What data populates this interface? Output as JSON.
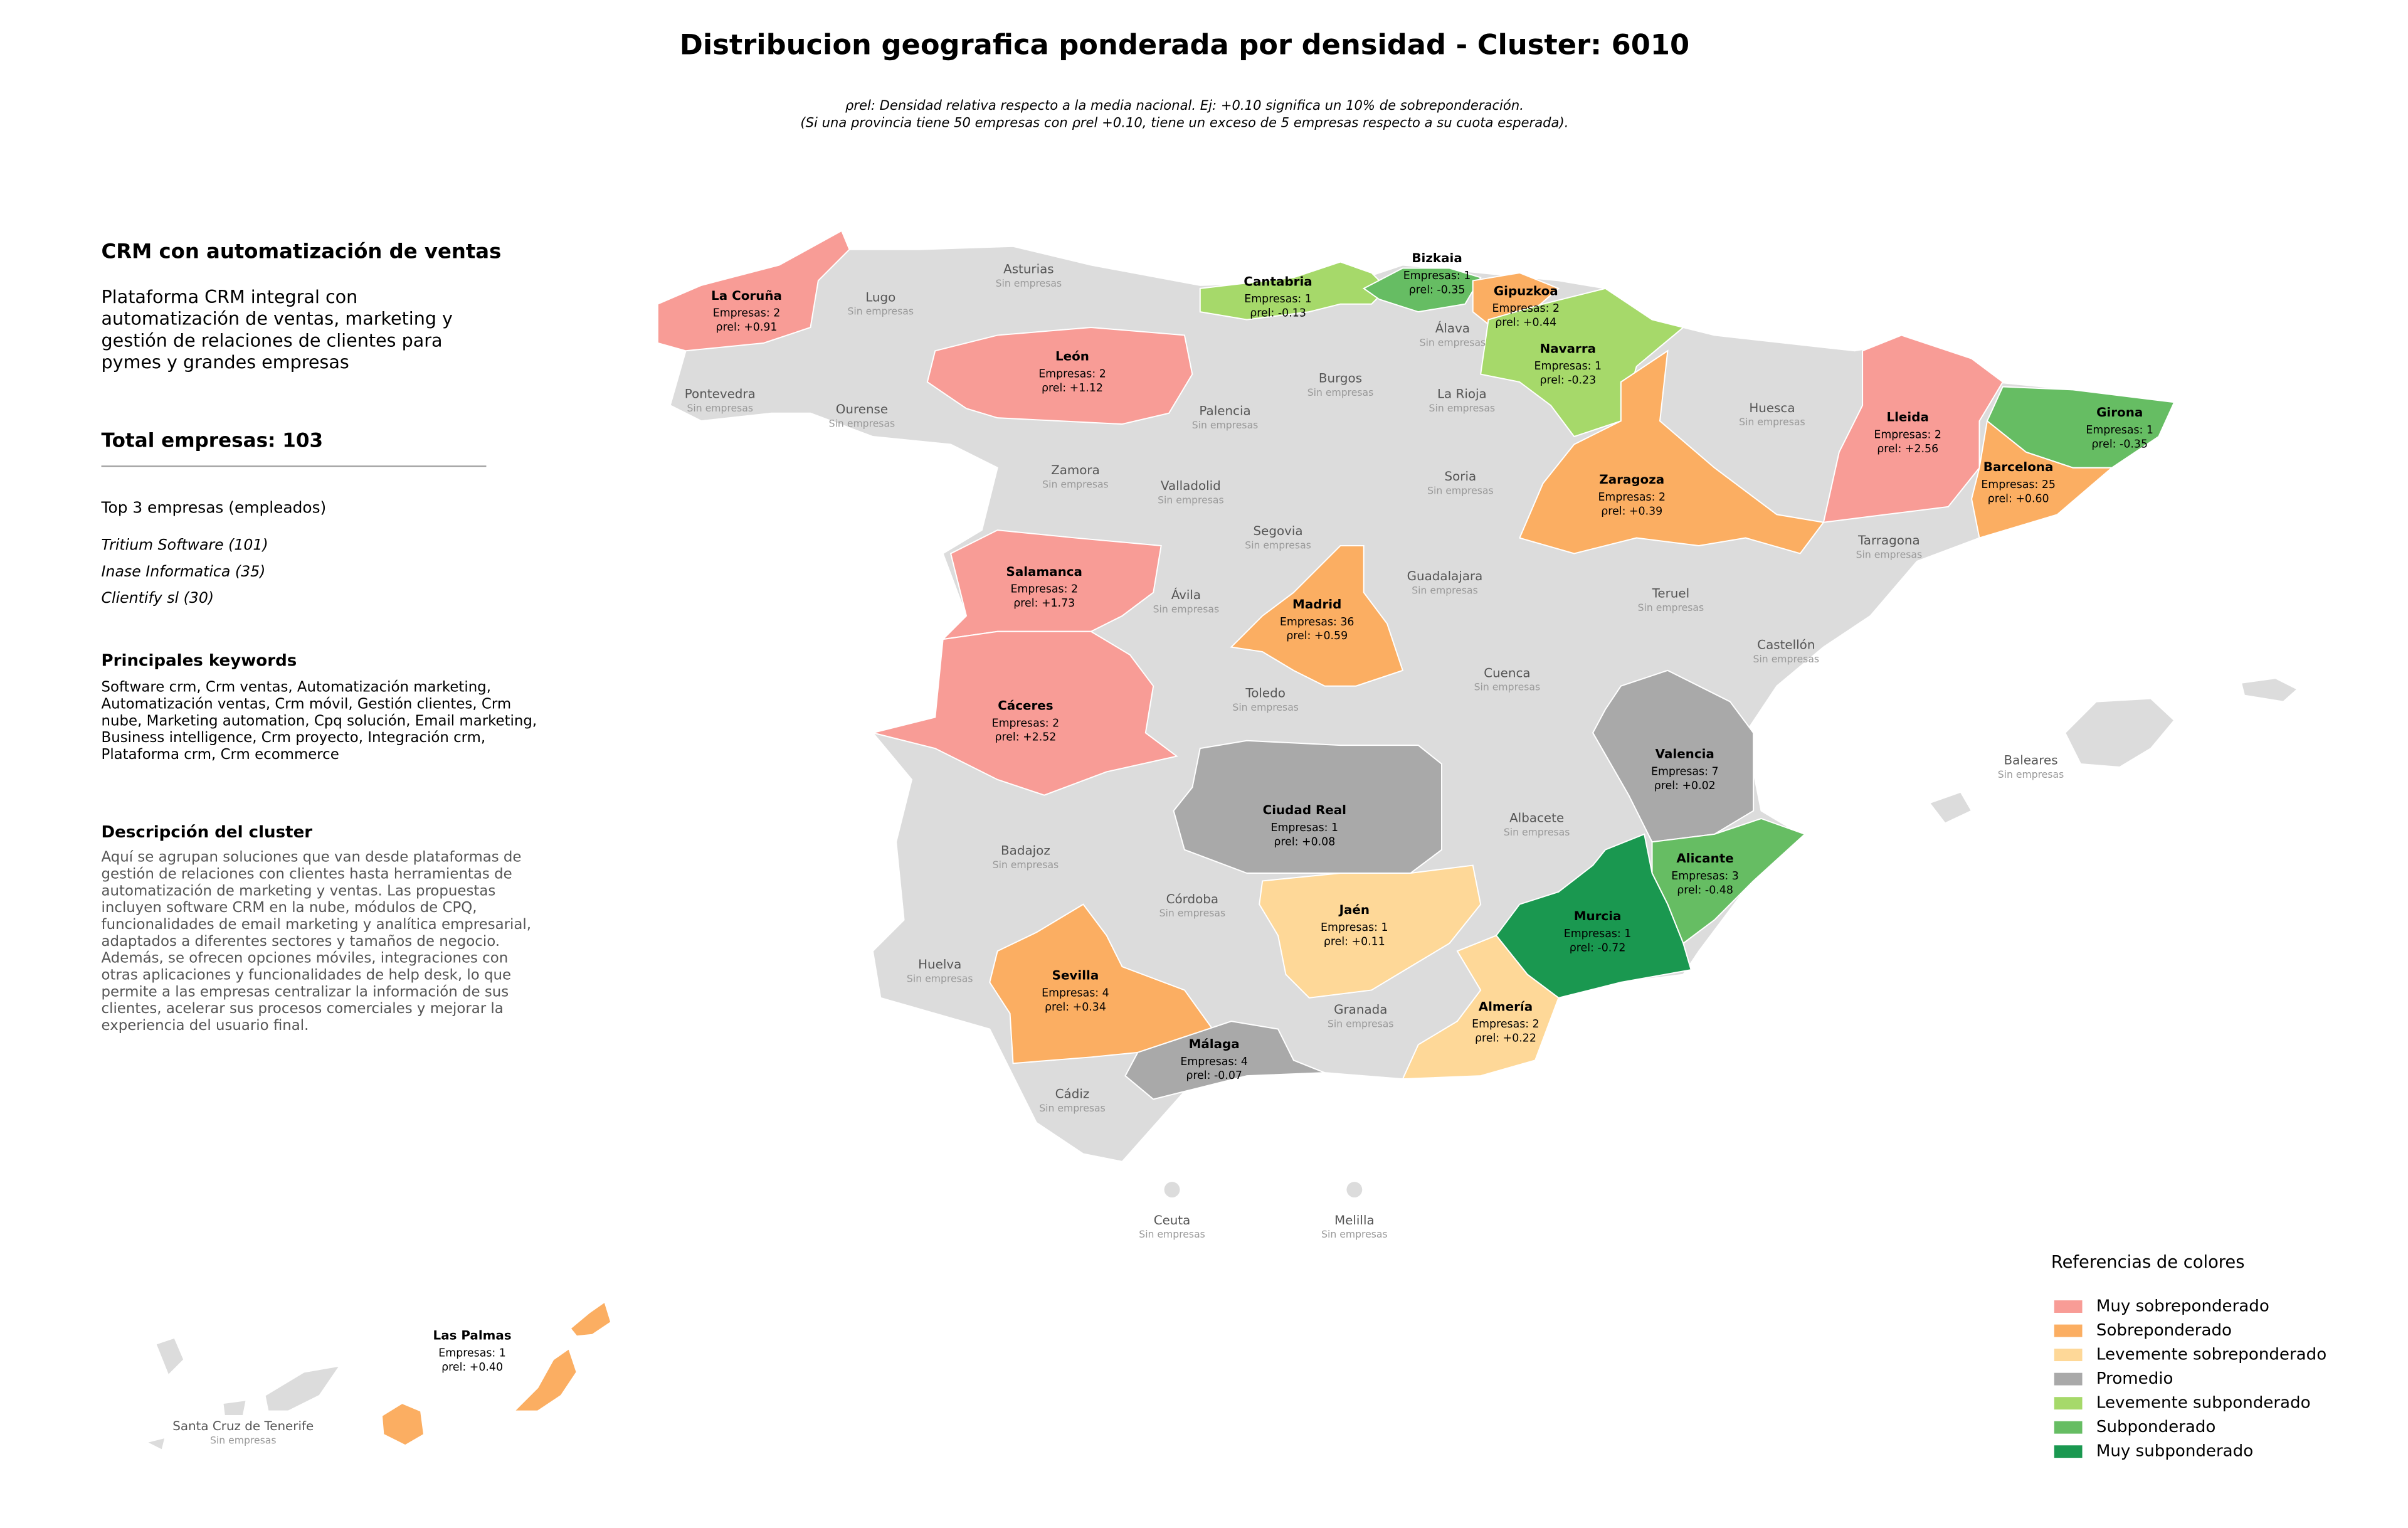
{
  "title": "Distribucion geografica ponderada por densidad - Cluster: 6010",
  "subtitle": [
    "ρrel: Densidad relativa respecto a la media nacional. Ej: +0.10 significa un 10% de sobreponderación.",
    "(Si una provincia tiene 50 empresas con ρrel +0.10, tiene un exceso de 5 empresas respecto a su cuota esperada)."
  ],
  "panel": {
    "title": "CRM con automatización de ventas",
    "summary": [
      "Plataforma CRM integral con",
      "automatización de ventas, marketing y",
      "gestión de relaciones de clientes para",
      "pymes y grandes empresas"
    ],
    "total": "Total empresas: 103",
    "top_heading": "Top 3 empresas (empleados)",
    "top": [
      "Tritium Software (101)",
      "Inase Informatica (35)",
      "Clientify sl (30)"
    ],
    "keywords_heading": "Principales keywords",
    "keywords": [
      "Software crm, Crm ventas, Automatización marketing,",
      "Automatización ventas, Crm móvil, Gestión clientes, Crm",
      "nube, Marketing automation, Cpq solución, Email marketing,",
      "Business intelligence, Crm proyecto, Integración crm,",
      "Plataforma crm, Crm ecommerce"
    ],
    "description_heading": "Descripción del cluster",
    "description": [
      "Aquí se agrupan soluciones que van desde plataformas de",
      "gestión de relaciones con clientes hasta herramientas de",
      "automatización de marketing y ventas. Las propuestas",
      "incluyen software CRM en la nube, módulos de CPQ,",
      "funcionalidades de email marketing y analítica empresarial,",
      "adaptados a diferentes sectores y tamaños de negocio.",
      "Además, se ofrecen opciones móviles, integraciones con",
      "otras aplicaciones y funcionalidades de help desk, lo que",
      "permite a las empresas centralizar la información de sus",
      "clientes, acelerar sus procesos comerciales y mejorar la",
      "experiencia del usuario final."
    ]
  },
  "map": {
    "base_color": "#dcdcdc",
    "provinces": [
      {
        "name": "La Coruña",
        "empresas": "Empresas: 2",
        "rho": "ρrel: +0.91",
        "color": "#f89c96"
      },
      {
        "name": "León",
        "empresas": "Empresas: 2",
        "rho": "ρrel: +1.12",
        "color": "#f89c96"
      },
      {
        "name": "Cantabria",
        "empresas": "Empresas: 1",
        "rho": "ρrel: -0.13",
        "color": "#a6d96a"
      },
      {
        "name": "Bizkaia",
        "empresas": "Empresas: 1",
        "rho": "ρrel: -0.35",
        "color": "#66bd63"
      },
      {
        "name": "Gipuzkoa",
        "empresas": "Empresas: 2",
        "rho": "ρrel: +0.44",
        "color": "#fbae62"
      },
      {
        "name": "Navarra",
        "empresas": "Empresas: 1",
        "rho": "ρrel: -0.23",
        "color": "#a6d96a"
      },
      {
        "name": "Lleida",
        "empresas": "Empresas: 2",
        "rho": "ρrel: +2.56",
        "color": "#f89c96"
      },
      {
        "name": "Girona",
        "empresas": "Empresas: 1",
        "rho": "ρrel: -0.35",
        "color": "#66bd63"
      },
      {
        "name": "Barcelona",
        "empresas": "Empresas: 25",
        "rho": "ρrel: +0.60",
        "color": "#fbae62"
      },
      {
        "name": "Zaragoza",
        "empresas": "Empresas: 2",
        "rho": "ρrel: +0.39",
        "color": "#fbae62"
      },
      {
        "name": "Salamanca",
        "empresas": "Empresas: 2",
        "rho": "ρrel: +1.73",
        "color": "#f89c96"
      },
      {
        "name": "Madrid",
        "empresas": "Empresas: 36",
        "rho": "ρrel: +0.59",
        "color": "#fbae62"
      },
      {
        "name": "Cáceres",
        "empresas": "Empresas: 2",
        "rho": "ρrel: +2.52",
        "color": "#f89c96"
      },
      {
        "name": "Valencia",
        "empresas": "Empresas: 7",
        "rho": "ρrel: +0.02",
        "color": "#a9a9a9"
      },
      {
        "name": "Ciudad Real",
        "empresas": "Empresas: 1",
        "rho": "ρrel: +0.08",
        "color": "#a9a9a9"
      },
      {
        "name": "Alicante",
        "empresas": "Empresas: 3",
        "rho": "ρrel: -0.48",
        "color": "#66bd63"
      },
      {
        "name": "Murcia",
        "empresas": "Empresas: 1",
        "rho": "ρrel: -0.72",
        "color": "#1a9850"
      },
      {
        "name": "Jaén",
        "empresas": "Empresas: 1",
        "rho": "ρrel: +0.11",
        "color": "#fed898"
      },
      {
        "name": "Sevilla",
        "empresas": "Empresas: 4",
        "rho": "ρrel: +0.34",
        "color": "#fbae62"
      },
      {
        "name": "Almería",
        "empresas": "Empresas: 2",
        "rho": "ρrel: +0.22",
        "color": "#fed898"
      },
      {
        "name": "Málaga",
        "empresas": "Empresas: 4",
        "rho": "ρrel: -0.07",
        "color": "#a9a9a9"
      },
      {
        "name": "Las Palmas",
        "empresas": "Empresas: 1",
        "rho": "ρrel: +0.40",
        "color": "#fbae62"
      },
      {
        "name": "Asturias",
        "empresas": "Sin empresas"
      },
      {
        "name": "Lugo",
        "empresas": "Sin empresas"
      },
      {
        "name": "Pontevedra",
        "empresas": "Sin empresas"
      },
      {
        "name": "Ourense",
        "empresas": "Sin empresas"
      },
      {
        "name": "Burgos",
        "empresas": "Sin empresas"
      },
      {
        "name": "Palencia",
        "empresas": "Sin empresas"
      },
      {
        "name": "Álava",
        "empresas": "Sin empresas"
      },
      {
        "name": "La Rioja",
        "empresas": "Sin empresas"
      },
      {
        "name": "Huesca",
        "empresas": "Sin empresas"
      },
      {
        "name": "Zamora",
        "empresas": "Sin empresas"
      },
      {
        "name": "Valladolid",
        "empresas": "Sin empresas"
      },
      {
        "name": "Soria",
        "empresas": "Sin empresas"
      },
      {
        "name": "Segovia",
        "empresas": "Sin empresas"
      },
      {
        "name": "Tarragona",
        "empresas": "Sin empresas"
      },
      {
        "name": "Guadalajara",
        "empresas": "Sin empresas"
      },
      {
        "name": "Ávila",
        "empresas": "Sin empresas"
      },
      {
        "name": "Teruel",
        "empresas": "Sin empresas"
      },
      {
        "name": "Castellón",
        "empresas": "Sin empresas"
      },
      {
        "name": "Cuenca",
        "empresas": "Sin empresas"
      },
      {
        "name": "Toledo",
        "empresas": "Sin empresas"
      },
      {
        "name": "Baleares",
        "empresas": "Sin empresas"
      },
      {
        "name": "Albacete",
        "empresas": "Sin empresas"
      },
      {
        "name": "Badajoz",
        "empresas": "Sin empresas"
      },
      {
        "name": "Córdoba",
        "empresas": "Sin empresas"
      },
      {
        "name": "Huelva",
        "empresas": "Sin empresas"
      },
      {
        "name": "Granada",
        "empresas": "Sin empresas"
      },
      {
        "name": "Cádiz",
        "empresas": "Sin empresas"
      },
      {
        "name": "Ceuta",
        "empresas": "Sin empresas"
      },
      {
        "name": "Melilla",
        "empresas": "Sin empresas"
      },
      {
        "name": "Santa Cruz de Tenerife",
        "empresas": "Sin empresas"
      }
    ]
  },
  "legend": {
    "title": "Referencias de colores",
    "items": [
      {
        "name": "Muy sobreponderado",
        "color": "#f89c96"
      },
      {
        "name": "Sobreponderado",
        "color": "#fbae62"
      },
      {
        "name": "Levemente sobreponderado",
        "color": "#fed898"
      },
      {
        "name": "Promedio",
        "color": "#a9a9a9"
      },
      {
        "name": "Levemente subponderado",
        "color": "#a6d96a"
      },
      {
        "name": "Subponderado",
        "color": "#66bd63"
      },
      {
        "name": "Muy subponderado",
        "color": "#1a9850"
      }
    ]
  }
}
